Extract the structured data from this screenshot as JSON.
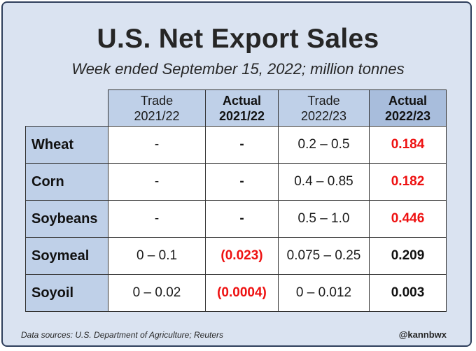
{
  "chart_data": {
    "type": "table",
    "title": "U.S. Net Export Sales",
    "subtitle": "Week ended September 15, 2022; million tonnes",
    "columns": [
      {
        "line1": "Trade",
        "line2": "2021/22",
        "bold": false
      },
      {
        "line1": "Actual",
        "line2": "2021/22",
        "bold": true
      },
      {
        "line1": "Trade",
        "line2": "2022/23",
        "bold": false
      },
      {
        "line1": "Actual",
        "line2": "2022/23",
        "bold": true
      }
    ],
    "rows": [
      {
        "label": "Wheat",
        "trade_2122": "-",
        "actual_2122": "-",
        "trade_2223": "0.2 – 0.5",
        "actual_2223": "0.184"
      },
      {
        "label": "Corn",
        "trade_2122": "-",
        "actual_2122": "-",
        "trade_2223": "0.4 – 0.85",
        "actual_2223": "0.182"
      },
      {
        "label": "Soybeans",
        "trade_2122": "-",
        "actual_2122": "-",
        "trade_2223": "0.5 – 1.0",
        "actual_2223": "0.446"
      },
      {
        "label": "Soymeal",
        "trade_2122": "0 – 0.1",
        "actual_2122": "(0.023)",
        "trade_2223": "0.075 – 0.25",
        "actual_2223": "0.209"
      },
      {
        "label": "Soyoil",
        "trade_2122": "0 – 0.02",
        "actual_2122": "(0.0004)",
        "trade_2223": "0 – 0.012",
        "actual_2223": "0.003"
      }
    ]
  },
  "footer": {
    "source": "Data sources: U.S. Department of Agriculture; Reuters",
    "handle": "@kannbwx"
  },
  "colors": {
    "background": "#dae3f1",
    "header_fill": "#bfd0e8",
    "highlight_header": "#a8bddc",
    "negative_or_miss": "#ee1111",
    "frame": "#2f3f5c"
  }
}
